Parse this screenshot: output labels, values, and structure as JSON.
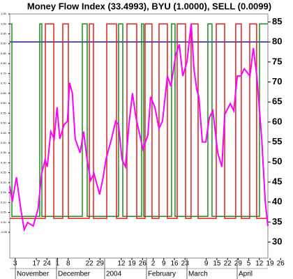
{
  "chart_data": {
    "type": "line",
    "title": "Money Flow Index (33.4993), BYU (1.0000), SELL (0.0099)",
    "xlim": [
      -0.5,
      23.8
    ],
    "ylim": [
      26,
      87
    ],
    "yticks": [
      85,
      80,
      75,
      70,
      65,
      60,
      55,
      50,
      45,
      40,
      35,
      30
    ],
    "y2lim": [
      -0.18,
      1.05
    ],
    "y2ticks": [
      {
        "value": 1.05,
        "label": "1.05"
      },
      {
        "value": 1.0,
        "label": "1.00"
      },
      {
        "value": 0.95,
        "label": "0.95"
      },
      {
        "value": 0.9,
        "label": "0.90"
      },
      {
        "value": 0.85,
        "label": "0.85"
      },
      {
        "value": 0.8,
        "label": "0.80"
      },
      {
        "value": 0.75,
        "label": "0.75"
      },
      {
        "value": 0.7,
        "label": "0.70"
      },
      {
        "value": 0.65,
        "label": "0.65"
      },
      {
        "value": 0.6,
        "label": "0.60"
      },
      {
        "value": 0.55,
        "label": "0.55"
      },
      {
        "value": 0.5,
        "label": "0.50"
      },
      {
        "value": 0.45,
        "label": "0.45"
      },
      {
        "value": 0.4,
        "label": "0.40"
      },
      {
        "value": 0.35,
        "label": "0.35"
      },
      {
        "value": 0.3,
        "label": "0.30"
      },
      {
        "value": 0.25,
        "label": "0.25"
      },
      {
        "value": 0.2,
        "label": "0.20"
      },
      {
        "value": 0.15,
        "label": "0.15"
      },
      {
        "value": 0.1,
        "label": "0.10"
      },
      {
        "value": 0.05,
        "label": "0.05"
      },
      {
        "value": 0.0,
        "label": "0.00"
      },
      {
        "value": -0.05,
        "label": "-0.05"
      }
    ],
    "xticks": [
      {
        "value": 0,
        "label": "3"
      },
      {
        "value": 2,
        "label": "17"
      },
      {
        "value": 3,
        "label": "24"
      },
      {
        "value": 4,
        "label": "1"
      },
      {
        "value": 5,
        "label": "8"
      },
      {
        "value": 7,
        "label": "22"
      },
      {
        "value": 8,
        "label": "29"
      },
      {
        "value": 10,
        "label": "12"
      },
      {
        "value": 11,
        "label": "19"
      },
      {
        "value": 12,
        "label": "26"
      },
      {
        "value": 13,
        "label": "2"
      },
      {
        "value": 14,
        "label": "9"
      },
      {
        "value": 15,
        "label": "16"
      },
      {
        "value": 16,
        "label": "23"
      },
      {
        "value": 18,
        "label": "9"
      },
      {
        "value": 19,
        "label": "15"
      },
      {
        "value": 20,
        "label": "22"
      },
      {
        "value": 21,
        "label": "29"
      },
      {
        "value": 22,
        "label": "5"
      },
      {
        "value": 23,
        "label": "12"
      },
      {
        "value": 24,
        "label": "19"
      },
      {
        "value": 25,
        "label": "26"
      }
    ],
    "xticks_secondary": [
      {
        "value": 0.16,
        "label": "November"
      },
      {
        "value": 4.03,
        "label": "December"
      },
      {
        "value": 8.56,
        "label": "2004"
      },
      {
        "value": 12.5,
        "label": "February"
      },
      {
        "value": 16.31,
        "label": "March"
      },
      {
        "value": 21.04,
        "label": "April"
      }
    ],
    "reference_line": {
      "value": 80,
      "color": "#1a1aa8"
    },
    "series": [
      {
        "color": "#1e8c1e",
        "axis": "y2",
        "x": [
          -0.5,
          -0.3,
          -0.3,
          2.32,
          2.32,
          2.52,
          2.52,
          6.33,
          6.33,
          6.79,
          6.79,
          9.74,
          9.74,
          10.14,
          10.14,
          11.91,
          11.91,
          12.11,
          12.11,
          14.73,
          14.73,
          15.06,
          15.06,
          18.15,
          18.15,
          18.54,
          18.54,
          23.01,
          23.01,
          23.8
        ],
        "values": [
          1,
          1,
          0.03,
          0.03,
          1,
          1,
          0.03,
          0.03,
          1,
          1,
          0.03,
          0.03,
          1,
          1,
          0.03,
          0.03,
          1,
          1,
          0.03,
          0.03,
          1,
          1,
          0.03,
          0.03,
          1,
          1,
          0.03,
          0.03,
          1,
          1
        ]
      },
      {
        "color": "#e02020",
        "axis": "y2",
        "x": [
          -0.5,
          2.85,
          2.85,
          3.64,
          3.64,
          4.49,
          4.49,
          5.02,
          5.02,
          6.99,
          6.99,
          7.38,
          7.38,
          8.63,
          8.63,
          9.55,
          9.55,
          10.53,
          10.53,
          11.45,
          11.45,
          12.24,
          12.24,
          12.89,
          12.89,
          13.55,
          13.55,
          14.34,
          14.34,
          15.26,
          15.26,
          16.05,
          16.05,
          16.57,
          16.57,
          17.23,
          17.23,
          18.94,
          18.94,
          19.73,
          19.73,
          20.77,
          20.77,
          21.3,
          21.3,
          22.09,
          22.09,
          22.74,
          22.74,
          23.8
        ],
        "values": [
          0.02,
          0.02,
          1,
          1,
          0.02,
          0.02,
          1,
          1,
          0.02,
          0.02,
          1,
          1,
          0.02,
          0.02,
          1,
          1,
          0.02,
          0.02,
          1,
          1,
          0.02,
          0.02,
          1,
          1,
          0.02,
          0.02,
          1,
          1,
          0.02,
          0.02,
          1,
          1,
          0.02,
          0.02,
          1,
          1,
          0.02,
          0.02,
          1,
          1,
          0.02,
          0.02,
          1,
          1,
          0.02,
          0.02,
          1,
          1,
          0.02,
          0.02
        ]
      },
      {
        "color": "#ff00ff",
        "axis": "y",
        "x": [
          -0.5,
          -0.26,
          0.13,
          0.53,
          0.86,
          1.18,
          1.71,
          2.17,
          2.5,
          2.83,
          3.03,
          3.36,
          3.68,
          3.95,
          4.21,
          4.61,
          4.93,
          5.13,
          5.39,
          5.66,
          6.12,
          6.45,
          6.78,
          7.11,
          7.43,
          7.96,
          8.29,
          8.55,
          9.08,
          9.47,
          9.74,
          10.07,
          10.39,
          10.72,
          11.05,
          11.38,
          12.04,
          12.5,
          12.76,
          13.16,
          13.55,
          13.88,
          14.34,
          14.67,
          15.13,
          15.46,
          15.79,
          16.18,
          16.58,
          16.84,
          17.11,
          17.3,
          17.63,
          17.96,
          18.29,
          18.62,
          19.08,
          19.47,
          19.74,
          20.26,
          20.59,
          20.92,
          21.25,
          21.58,
          22.11,
          22.43,
          22.76,
          23.22,
          23.55,
          23.8
        ],
        "values": [
          44.0,
          40.1,
          46.2,
          38.4,
          33.1,
          34.9,
          34.0,
          38.4,
          47.1,
          50.6,
          48.8,
          57.6,
          55.8,
          63.7,
          55.8,
          59.3,
          60.2,
          69.8,
          67.2,
          55.8,
          52.3,
          57.6,
          50.6,
          45.4,
          47.1,
          41.9,
          46.2,
          50.6,
          55.8,
          60.2,
          59.3,
          50.6,
          48.8,
          59.3,
          67.2,
          61.1,
          53.2,
          56.7,
          66.3,
          63.7,
          58.4,
          60.2,
          71.5,
          68.9,
          76.8,
          79.4,
          71.5,
          75.0,
          84.6,
          73.3,
          68.0,
          66.3,
          55.0,
          55.0,
          61.1,
          62.8,
          52.3,
          48.8,
          61.9,
          64.6,
          62.8,
          71.5,
          71.5,
          73.3,
          71.5,
          78.5,
          71.5,
          55.8,
          40.1,
          34.0
        ]
      }
    ]
  }
}
